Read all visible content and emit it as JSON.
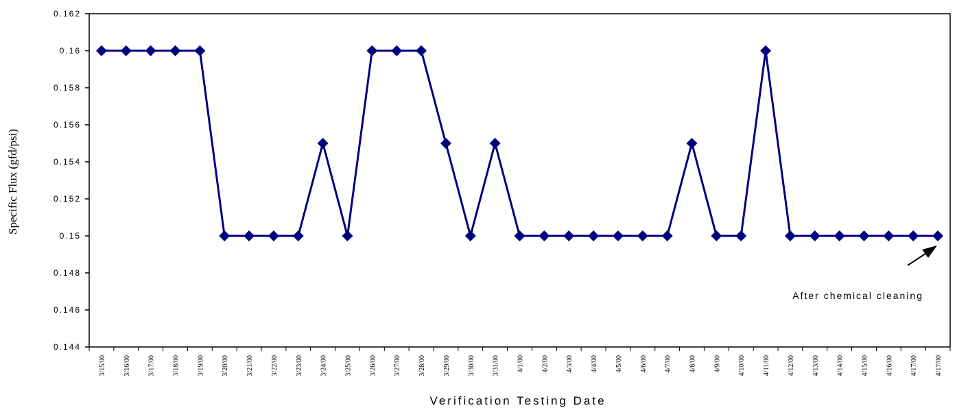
{
  "chart_data": {
    "type": "line",
    "title": "",
    "xlabel": "Verification Testing Date",
    "ylabel": "Specific Flux (gfd/psi)",
    "ylim": [
      0.144,
      0.162
    ],
    "yticks": [
      "0.144",
      "0.146",
      "0.148",
      "0.15",
      "0.152",
      "0.154",
      "0.156",
      "0.158",
      "0.16",
      "0.162"
    ],
    "grid": false,
    "legend": "none",
    "line_color": "#00007F",
    "marker": "diamond",
    "categories": [
      "3/15/00",
      "3/16/00",
      "3/17/00",
      "3/18/00",
      "3/19/00",
      "3/20/00",
      "3/21/00",
      "3/22/00",
      "3/23/00",
      "3/24/00",
      "3/25/00",
      "3/26/00",
      "3/27/00",
      "3/28/00",
      "3/29/00",
      "3/30/00",
      "3/31/00",
      "4/1/00",
      "4/2/00",
      "4/3/00",
      "4/4/00",
      "4/5/00",
      "4/6/00",
      "4/7/00",
      "4/8/00",
      "4/9/00",
      "4/10/00",
      "4/11/00",
      "4/12/00",
      "4/13/00",
      "4/14/00",
      "4/15/00",
      "4/16/00",
      "4/17/00",
      "4/17/00"
    ],
    "values": [
      0.16,
      0.16,
      0.16,
      0.16,
      0.16,
      0.15,
      0.15,
      0.15,
      0.15,
      0.155,
      0.15,
      0.16,
      0.16,
      0.16,
      0.155,
      0.15,
      0.155,
      0.15,
      0.15,
      0.15,
      0.15,
      0.15,
      0.15,
      0.15,
      0.155,
      0.15,
      0.15,
      0.16,
      0.15,
      0.15,
      0.15,
      0.15,
      0.15,
      0.15,
      0.15
    ],
    "annotations": [
      {
        "text": "After chemical cleaning",
        "points_to_index": 34
      }
    ]
  }
}
